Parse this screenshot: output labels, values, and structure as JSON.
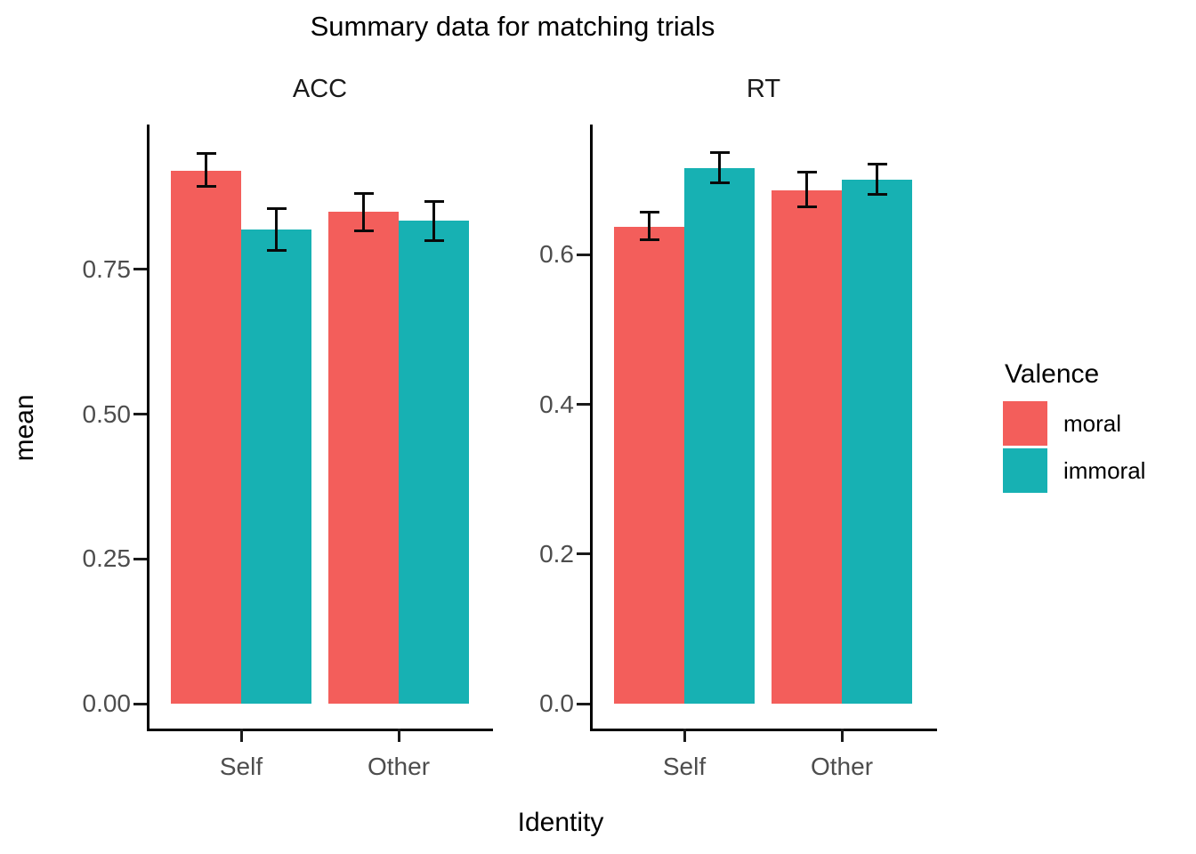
{
  "title": {
    "text": "Summary data for matching trials"
  },
  "axes": {
    "x_label": "Identity",
    "y_label": "mean"
  },
  "legend": {
    "title": "Valence",
    "position": "right",
    "items": [
      {
        "label": "moral",
        "color": "#F35E5B"
      },
      {
        "label": "immoral",
        "color": "#17B1B3"
      }
    ]
  },
  "style": {
    "moral_color": "#F35E5B",
    "immoral_color": "#17B1B3",
    "axis_line_color": "#000000",
    "tick_label_color": "#4D4D4D",
    "background": "#FFFFFF"
  },
  "chart_data": [
    {
      "type": "bar",
      "facet": "ACC",
      "title": "Summary data for matching trials",
      "xlabel": "Identity",
      "ylabel": "mean",
      "grid": false,
      "categories": [
        "Self",
        "Other"
      ],
      "series": [
        {
          "name": "moral",
          "values": [
            0.92,
            0.849
          ],
          "ci_low": [
            0.891,
            0.814
          ],
          "ci_high": [
            0.952,
            0.883
          ]
        },
        {
          "name": "immoral",
          "values": [
            0.819,
            0.834
          ],
          "ci_low": [
            0.78,
            0.797
          ],
          "ci_high": [
            0.857,
            0.869
          ]
        }
      ],
      "ylim": [
        0,
        1.0
      ],
      "yticks": [
        {
          "v": 0.0,
          "label": "0.00"
        },
        {
          "v": 0.25,
          "label": "0.25"
        },
        {
          "v": 0.5,
          "label": "0.50"
        },
        {
          "v": 0.75,
          "label": "0.75"
        }
      ]
    },
    {
      "type": "bar",
      "facet": "RT",
      "title": "Summary data for matching trials",
      "xlabel": "Identity",
      "ylabel": "mean",
      "grid": false,
      "categories": [
        "Self",
        "Other"
      ],
      "series": [
        {
          "name": "moral",
          "values": [
            0.637,
            0.686
          ],
          "ci_low": [
            0.618,
            0.662
          ],
          "ci_high": [
            0.659,
            0.712
          ]
        },
        {
          "name": "immoral",
          "values": [
            0.716,
            0.7
          ],
          "ci_low": [
            0.694,
            0.679
          ],
          "ci_high": [
            0.738,
            0.723
          ]
        }
      ],
      "ylim": [
        0,
        0.78
      ],
      "yticks": [
        {
          "v": 0.0,
          "label": "0.0"
        },
        {
          "v": 0.2,
          "label": "0.2"
        },
        {
          "v": 0.4,
          "label": "0.4"
        },
        {
          "v": 0.6,
          "label": "0.6"
        }
      ]
    }
  ]
}
